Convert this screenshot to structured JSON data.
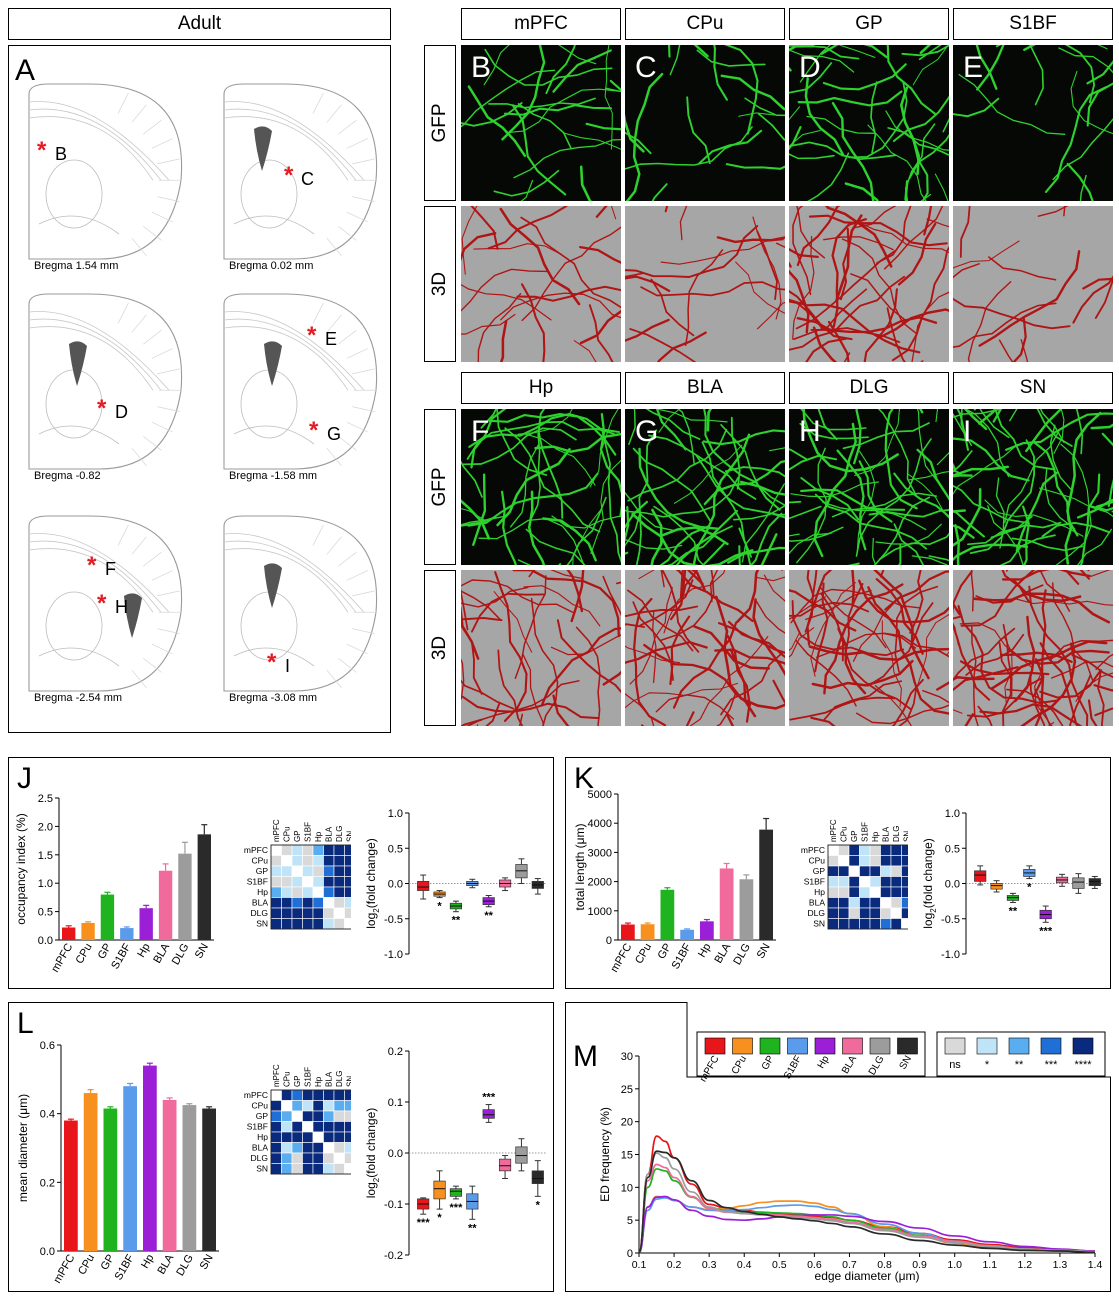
{
  "panel_a": {
    "header": "Adult",
    "letter": "A",
    "sections": [
      {
        "caption": "Bregma 1.54 mm",
        "markers": [
          "B"
        ]
      },
      {
        "caption": "Bregma 0.02 mm",
        "markers": [
          "C"
        ]
      },
      {
        "caption": "Bregma -0.82",
        "markers": [
          "D"
        ]
      },
      {
        "caption": "Bregma -1.58 mm",
        "markers": [
          "E",
          "G"
        ]
      },
      {
        "caption": "Bregma -2.54 mm",
        "markers": [
          "F",
          "H"
        ]
      },
      {
        "caption": "Bregma -3.08 mm",
        "markers": [
          "I"
        ]
      }
    ],
    "asterisk": "*"
  },
  "micrographs": {
    "row_labels": {
      "gfp": "GFP",
      "render": "3D"
    },
    "regions_top": [
      "mPFC",
      "CPu",
      "GP",
      "S1BF"
    ],
    "letters_top": [
      "B",
      "C",
      "D",
      "E"
    ],
    "regions_bottom": [
      "Hp",
      "BLA",
      "DLG",
      "SN"
    ],
    "letters_bottom": [
      "F",
      "G",
      "H",
      "I"
    ],
    "colors": {
      "gfp_fiber": "#2fd12f",
      "gfp_bg": "#050805",
      "render_fiber": "#b01515",
      "render_bg": "#a6a6a6"
    }
  },
  "regions": [
    "mPFC",
    "CPu",
    "GP",
    "S1BF",
    "Hp",
    "BLA",
    "DLG",
    "SN"
  ],
  "region_colors": [
    "#e8161b",
    "#f7901e",
    "#1fb31f",
    "#5b9bec",
    "#9a1fd6",
    "#f06b9c",
    "#9c9c9c",
    "#2a2a2a"
  ],
  "significance_legend": {
    "labels": [
      "ns",
      "*",
      "**",
      "***",
      "****"
    ],
    "colors": [
      "#d9d9d9",
      "#bfe3f7",
      "#5aaef0",
      "#1f6fd6",
      "#0a2a7d"
    ]
  },
  "panel_j": {
    "letter": "J",
    "bar": {
      "ylabel": "occupancy index (%)",
      "yticks": [
        "0.0",
        "0.5",
        "1.0",
        "1.5",
        "2.0",
        "2.5"
      ],
      "ylim": [
        0,
        2.5
      ]
    },
    "box": {
      "ylabel_main": "log",
      "ylabel_sub": "2",
      "ylabel_tail": "(fold change)",
      "yticks": [
        "1.0",
        "0.5",
        "0.0",
        "-0.5",
        "-1.0"
      ],
      "ylim": [
        -1,
        1
      ],
      "stars": [
        "",
        "*",
        "**",
        "",
        "**",
        "",
        "",
        ""
      ]
    }
  },
  "panel_k": {
    "letter": "K",
    "bar": {
      "ylabel": "total length (μm)",
      "yticks": [
        "0",
        "1000",
        "2000",
        "3000",
        "4000",
        "5000"
      ],
      "ylim": [
        0,
        5000
      ]
    },
    "box": {
      "ylabel_main": "log",
      "ylabel_sub": "2",
      "ylabel_tail": "(fold change)",
      "yticks": [
        "1.0",
        "0.5",
        "0.0",
        "-0.5",
        "-1.0"
      ],
      "ylim": [
        -1,
        1
      ],
      "stars": [
        "",
        "",
        "**",
        "*",
        "***",
        "",
        "",
        ""
      ]
    }
  },
  "panel_l": {
    "letter": "L",
    "bar": {
      "ylabel": "mean diameter (μm)",
      "yticks": [
        "0.0",
        "0.2",
        "0.4",
        "0.6"
      ],
      "ylim": [
        0,
        0.6
      ]
    },
    "box": {
      "ylabel_main": "log",
      "ylabel_sub": "2",
      "ylabel_tail": "(fold change)",
      "yticks": [
        "0.2",
        "0.1",
        "0.0",
        "-0.1",
        "-0.2"
      ],
      "ylim": [
        -0.2,
        0.2
      ],
      "stars": [
        "***",
        "*",
        "***",
        "**",
        "***",
        "",
        "",
        "*"
      ]
    }
  },
  "panel_m": {
    "letter": "M",
    "ylabel": "ED frequency (%)",
    "xlabel": "edge diameter (μm)",
    "yticks": [
      "0",
      "5",
      "10",
      "15",
      "20",
      "25",
      "30"
    ],
    "xticks": [
      "0.1",
      "0.2",
      "0.3",
      "0.4",
      "0.5",
      "0.6",
      "0.7",
      "0.8",
      "0.9",
      "1.0",
      "1.1",
      "1.2",
      "1.3",
      "1.4"
    ]
  },
  "chart_data": [
    {
      "type": "bar",
      "panel": "J",
      "categories": [
        "mPFC",
        "CPu",
        "GP",
        "S1BF",
        "Hp",
        "BLA",
        "DLG",
        "SN"
      ],
      "values": [
        0.22,
        0.3,
        0.8,
        0.21,
        0.56,
        1.22,
        1.52,
        1.86
      ],
      "errors": [
        0.03,
        0.02,
        0.04,
        0.02,
        0.05,
        0.12,
        0.2,
        0.17
      ],
      "ylabel": "occupancy index (%)",
      "ylim": [
        0,
        2.5
      ]
    },
    {
      "type": "box",
      "panel": "J",
      "categories": [
        "mPFC",
        "CPu",
        "GP",
        "S1BF",
        "Hp",
        "BLA",
        "DLG",
        "SN"
      ],
      "boxes": [
        {
          "median": -0.05,
          "q1": -0.1,
          "q3": 0.03,
          "min": -0.22,
          "max": 0.12
        },
        {
          "median": -0.15,
          "q1": -0.18,
          "q3": -0.12,
          "min": -0.2,
          "max": -0.1
        },
        {
          "median": -0.32,
          "q1": -0.36,
          "q3": -0.28,
          "min": -0.4,
          "max": -0.25
        },
        {
          "median": 0.0,
          "q1": -0.03,
          "q3": 0.03,
          "min": -0.06,
          "max": 0.06
        },
        {
          "median": -0.25,
          "q1": -0.3,
          "q3": -0.2,
          "min": -0.33,
          "max": -0.17
        },
        {
          "median": 0.0,
          "q1": -0.05,
          "q3": 0.05,
          "min": -0.1,
          "max": 0.08
        },
        {
          "median": 0.18,
          "q1": 0.08,
          "q3": 0.27,
          "min": 0.0,
          "max": 0.35
        },
        {
          "median": -0.02,
          "q1": -0.07,
          "q3": 0.03,
          "min": -0.15,
          "max": 0.07
        }
      ],
      "ylim": [
        -1,
        1
      ]
    },
    {
      "type": "bar",
      "panel": "K",
      "categories": [
        "mPFC",
        "CPu",
        "GP",
        "S1BF",
        "Hp",
        "BLA",
        "DLG",
        "SN"
      ],
      "values": [
        530,
        540,
        1720,
        350,
        640,
        2450,
        2080,
        3780
      ],
      "errors": [
        50,
        40,
        70,
        30,
        60,
        170,
        150,
        380
      ],
      "ylabel": "total length (μm)",
      "ylim": [
        0,
        5000
      ]
    },
    {
      "type": "box",
      "panel": "K",
      "categories": [
        "mPFC",
        "CPu",
        "GP",
        "S1BF",
        "Hp",
        "BLA",
        "DLG",
        "SN"
      ],
      "boxes": [
        {
          "median": 0.12,
          "q1": 0.03,
          "q3": 0.18,
          "min": -0.02,
          "max": 0.25
        },
        {
          "median": -0.03,
          "q1": -0.08,
          "q3": 0.0,
          "min": -0.12,
          "max": 0.04
        },
        {
          "median": -0.2,
          "q1": -0.24,
          "q3": -0.17,
          "min": -0.27,
          "max": -0.14
        },
        {
          "median": 0.15,
          "q1": 0.1,
          "q3": 0.2,
          "min": 0.07,
          "max": 0.25
        },
        {
          "median": -0.44,
          "q1": -0.5,
          "q3": -0.38,
          "min": -0.55,
          "max": -0.32
        },
        {
          "median": 0.05,
          "q1": 0.01,
          "q3": 0.09,
          "min": -0.04,
          "max": 0.13
        },
        {
          "median": 0.02,
          "q1": -0.07,
          "q3": 0.08,
          "min": -0.14,
          "max": 0.14
        },
        {
          "median": 0.03,
          "q1": -0.03,
          "q3": 0.07,
          "min": -0.07,
          "max": 0.1
        }
      ],
      "ylim": [
        -1,
        1
      ]
    },
    {
      "type": "bar",
      "panel": "L",
      "categories": [
        "mPFC",
        "CPu",
        "GP",
        "S1BF",
        "Hp",
        "BLA",
        "DLG",
        "SN"
      ],
      "values": [
        0.38,
        0.46,
        0.415,
        0.48,
        0.54,
        0.44,
        0.425,
        0.415
      ],
      "errors": [
        0.004,
        0.01,
        0.005,
        0.008,
        0.007,
        0.006,
        0.004,
        0.005
      ],
      "ylabel": "mean diameter (μm)",
      "ylim": [
        0,
        0.6
      ]
    },
    {
      "type": "box",
      "panel": "L",
      "categories": [
        "mPFC",
        "CPu",
        "GP",
        "S1BF",
        "Hp",
        "BLA",
        "DLG",
        "SN"
      ],
      "boxes": [
        {
          "median": -0.1,
          "q1": -0.11,
          "q3": -0.09,
          "min": -0.12,
          "max": -0.088
        },
        {
          "median": -0.07,
          "q1": -0.09,
          "q3": -0.055,
          "min": -0.11,
          "max": -0.035
        },
        {
          "median": -0.075,
          "q1": -0.085,
          "q3": -0.07,
          "min": -0.09,
          "max": -0.065
        },
        {
          "median": -0.095,
          "q1": -0.11,
          "q3": -0.08,
          "min": -0.13,
          "max": -0.065
        },
        {
          "median": 0.075,
          "q1": 0.068,
          "q3": 0.085,
          "min": 0.06,
          "max": 0.095
        },
        {
          "median": -0.025,
          "q1": -0.035,
          "q3": -0.012,
          "min": -0.05,
          "max": -0.005
        },
        {
          "median": -0.005,
          "q1": -0.02,
          "q3": 0.012,
          "min": -0.035,
          "max": 0.028
        },
        {
          "median": -0.05,
          "q1": -0.06,
          "q3": -0.035,
          "min": -0.085,
          "max": -0.015
        }
      ],
      "ylim": [
        -0.2,
        0.2
      ]
    },
    {
      "type": "line",
      "panel": "M",
      "xlabel": "edge diameter (μm)",
      "ylabel": "ED frequency (%)",
      "xlim": [
        0.1,
        1.4
      ],
      "ylim": [
        0,
        30
      ],
      "x": [
        0.1,
        0.125,
        0.15,
        0.175,
        0.2,
        0.25,
        0.3,
        0.35,
        0.4,
        0.45,
        0.5,
        0.55,
        0.6,
        0.65,
        0.7,
        0.8,
        0.9,
        1.0,
        1.1,
        1.2,
        1.3,
        1.4
      ],
      "series": [
        {
          "name": "mPFC",
          "values": [
            0,
            12,
            17.8,
            17,
            14.5,
            10.5,
            7.4,
            6.8,
            6.5,
            6.2,
            6.0,
            5.8,
            5.6,
            5.4,
            5.0,
            4.0,
            3.0,
            2.0,
            1.3,
            0.8,
            0.5,
            0.3
          ]
        },
        {
          "name": "CPu",
          "values": [
            0,
            7,
            8.6,
            8.5,
            8.0,
            7.0,
            6.6,
            6.8,
            7.2,
            7.7,
            7.9,
            7.9,
            7.6,
            7.0,
            6.0,
            4.0,
            2.5,
            1.5,
            0.9,
            0.5,
            0.3,
            0.2
          ]
        },
        {
          "name": "GP",
          "values": [
            0,
            10,
            12.8,
            12.5,
            11.0,
            8.5,
            6.9,
            6.5,
            6.3,
            6.2,
            6.1,
            6.0,
            5.8,
            5.5,
            5.0,
            3.8,
            2.7,
            1.8,
            1.1,
            0.6,
            0.4,
            0.2
          ]
        },
        {
          "name": "S1BF",
          "values": [
            0,
            6.5,
            8.2,
            8.4,
            8.0,
            7.0,
            6.5,
            6.4,
            6.6,
            6.9,
            7.2,
            7.3,
            7.1,
            6.6,
            6.0,
            4.4,
            3.0,
            1.8,
            1.0,
            0.6,
            0.3,
            0.2
          ]
        },
        {
          "name": "Hp",
          "values": [
            0,
            7,
            8.5,
            8.6,
            8.1,
            6.5,
            5.6,
            5.1,
            5.0,
            5.2,
            5.5,
            5.7,
            5.8,
            5.8,
            5.6,
            4.8,
            3.8,
            2.6,
            1.7,
            1.0,
            0.6,
            0.3
          ]
        },
        {
          "name": "BLA",
          "values": [
            0,
            11,
            13.5,
            13.0,
            11.5,
            8.6,
            6.8,
            6.2,
            6.0,
            5.9,
            5.8,
            5.6,
            5.4,
            5.1,
            4.7,
            3.6,
            2.6,
            1.8,
            1.1,
            0.6,
            0.4,
            0.2
          ]
        },
        {
          "name": "DLG",
          "values": [
            0,
            12,
            15.2,
            14.5,
            12.8,
            9.3,
            7.0,
            6.3,
            6.0,
            5.8,
            5.6,
            5.4,
            5.2,
            4.9,
            4.5,
            3.4,
            2.4,
            1.6,
            1.0,
            0.6,
            0.4,
            0.2
          ]
        },
        {
          "name": "SN",
          "values": [
            0,
            11.5,
            15.5,
            15.3,
            14.5,
            11.0,
            8.0,
            6.9,
            6.3,
            5.9,
            5.5,
            5.2,
            4.9,
            4.5,
            4.0,
            2.9,
            1.9,
            1.2,
            0.7,
            0.4,
            0.3,
            0.1
          ]
        }
      ]
    }
  ],
  "heatmaps": {
    "J": [
      [
        0,
        0,
        1,
        0,
        2,
        4,
        4,
        4
      ],
      [
        0,
        0,
        1,
        0,
        1,
        4,
        4,
        4
      ],
      [
        1,
        1,
        0,
        1,
        0,
        3,
        4,
        4
      ],
      [
        0,
        0,
        1,
        0,
        1,
        4,
        4,
        4
      ],
      [
        2,
        1,
        0,
        1,
        0,
        3,
        4,
        4
      ],
      [
        4,
        4,
        3,
        4,
        3,
        0,
        0,
        1
      ],
      [
        4,
        4,
        4,
        4,
        4,
        0,
        0,
        0
      ],
      [
        4,
        4,
        4,
        4,
        4,
        1,
        0,
        0
      ]
    ],
    "K": [
      [
        0,
        0,
        4,
        1,
        0,
        4,
        4,
        4
      ],
      [
        0,
        0,
        4,
        1,
        0,
        4,
        4,
        4
      ],
      [
        4,
        4,
        0,
        4,
        4,
        1,
        0,
        4
      ],
      [
        1,
        1,
        4,
        0,
        1,
        4,
        4,
        4
      ],
      [
        0,
        0,
        4,
        1,
        0,
        4,
        4,
        4
      ],
      [
        4,
        4,
        1,
        4,
        4,
        0,
        0,
        3
      ],
      [
        4,
        4,
        0,
        4,
        4,
        0,
        0,
        4
      ],
      [
        4,
        4,
        4,
        4,
        4,
        3,
        4,
        0
      ]
    ],
    "L": [
      [
        0,
        4,
        3,
        4,
        4,
        4,
        4,
        4
      ],
      [
        4,
        0,
        2,
        1,
        4,
        1,
        2,
        2
      ],
      [
        3,
        2,
        0,
        4,
        4,
        2,
        0,
        0
      ],
      [
        4,
        1,
        4,
        0,
        4,
        4,
        4,
        4
      ],
      [
        4,
        4,
        4,
        4,
        0,
        4,
        4,
        4
      ],
      [
        4,
        1,
        2,
        4,
        4,
        0,
        0,
        1
      ],
      [
        4,
        2,
        0,
        4,
        4,
        0,
        0,
        0
      ],
      [
        4,
        2,
        0,
        4,
        4,
        1,
        0,
        0
      ]
    ]
  }
}
